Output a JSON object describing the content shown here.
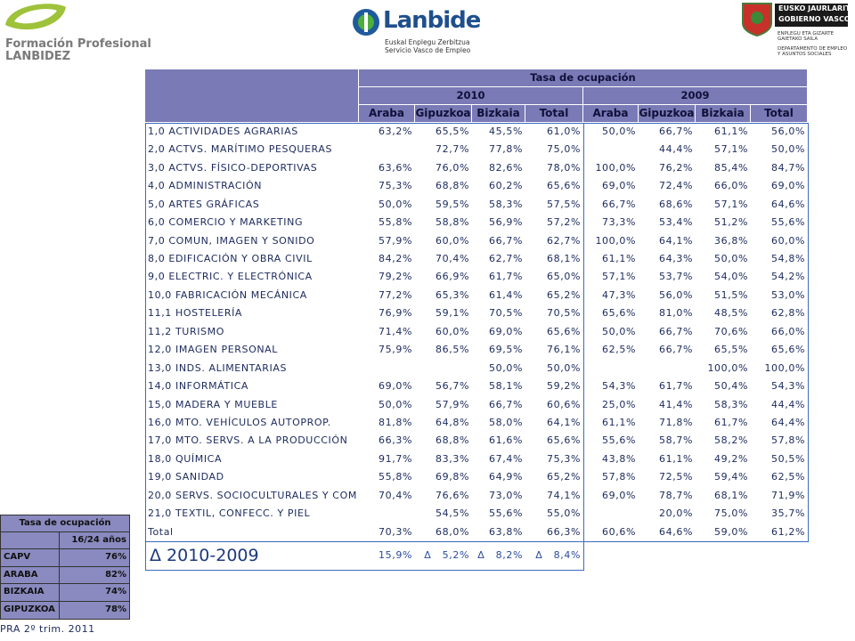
{
  "header": {
    "left_logo": [
      "Formación Profesional",
      "LANBIDEZ"
    ],
    "center_logo": {
      "name": "Lanbide",
      "lines": [
        "Euskal Enplegu Zerbitzua",
        "Servicio Vasco de Empleo"
      ]
    },
    "right_logo": {
      "title": [
        "EUSKO JAURLARITZA",
        "GOBIERNO VASCO"
      ],
      "lines": [
        "ENPLEGU ETA GIZARTE",
        "GAIETAKO SAILA",
        "DEPARTAMENTO DE EMPLEO",
        "Y ASUNTOS SOCIALES"
      ]
    }
  },
  "table": {
    "title": "Tasa de ocupación",
    "years": [
      "2010",
      "2009"
    ],
    "columns": [
      "Araba",
      "Gipuzkoa",
      "Bizkaia",
      "Total",
      "Araba",
      "Gipuzkoa",
      "Bizkaia",
      "Total"
    ],
    "rows": [
      [
        "1,0 ACTIVIDADES AGRARIAS",
        "63,2%",
        "65,5%",
        "45,5%",
        "61,0%",
        "50,0%",
        "66,7%",
        "61,1%",
        "56,0%"
      ],
      [
        "2,0 ACTVS. MARÍTIMO PESQUERAS",
        null,
        "72,7%",
        "77,8%",
        "75,0%",
        null,
        "44,4%",
        "57,1%",
        "50,0%"
      ],
      [
        "3,0 ACTVS. FÍSICO-DEPORTIVAS",
        "63,6%",
        "76,0%",
        "82,6%",
        "78,0%",
        "100,0%",
        "76,2%",
        "85,4%",
        "84,7%"
      ],
      [
        "4,0 ADMINISTRACIÓN",
        "75,3%",
        "68,8%",
        "60,2%",
        "65,6%",
        "69,0%",
        "72,4%",
        "66,0%",
        "69,0%"
      ],
      [
        "5,0 ARTES GRÁFICAS",
        "50,0%",
        "59,5%",
        "58,3%",
        "57,5%",
        "66,7%",
        "68,6%",
        "57,1%",
        "64,6%"
      ],
      [
        "6,0 COMERCIO Y MARKETING",
        "55,8%",
        "58,8%",
        "56,9%",
        "57,2%",
        "73,3%",
        "53,4%",
        "51,2%",
        "55,6%"
      ],
      [
        "7,0 COMUN, IMAGEN Y SONIDO",
        "57,9%",
        "60,0%",
        "66,7%",
        "62,7%",
        "100,0%",
        "64,1%",
        "36,8%",
        "60,0%"
      ],
      [
        "8,0 EDIFICACIÓN Y OBRA CIVIL",
        "84,2%",
        "70,4%",
        "62,7%",
        "68,1%",
        "61,1%",
        "64,3%",
        "50,0%",
        "54,8%"
      ],
      [
        "9,0 ELECTRIC. Y ELECTRÓNICA",
        "79,2%",
        "66,9%",
        "61,7%",
        "65,0%",
        "57,1%",
        "53,7%",
        "54,0%",
        "54,2%"
      ],
      [
        "10,0 FABRICACIÓN MECÁNICA",
        "77,2%",
        "65,3%",
        "61,4%",
        "65,2%",
        "47,3%",
        "56,0%",
        "51,5%",
        "53,0%"
      ],
      [
        "11,1 HOSTELERÍA",
        "76,9%",
        "59,1%",
        "70,5%",
        "70,5%",
        "65,6%",
        "81,0%",
        "48,5%",
        "62,8%"
      ],
      [
        "11,2 TURISMO",
        "71,4%",
        "60,0%",
        "69,0%",
        "65,6%",
        "50,0%",
        "66,7%",
        "70,6%",
        "66,0%"
      ],
      [
        "12,0 IMAGEN PERSONAL",
        "75,9%",
        "86,5%",
        "69,5%",
        "76,1%",
        "62,5%",
        "66,7%",
        "65,5%",
        "65,6%"
      ],
      [
        "13,0 INDS. ALIMENTARIAS",
        null,
        null,
        "50,0%",
        "50,0%",
        null,
        null,
        "100,0%",
        "100,0%"
      ],
      [
        "14,0 INFORMÁTICA",
        "69,0%",
        "56,7%",
        "58,1%",
        "59,2%",
        "54,3%",
        "61,7%",
        "50,4%",
        "54,3%"
      ],
      [
        "15,0 MADERA Y MUEBLE",
        "50,0%",
        "57,9%",
        "66,7%",
        "60,6%",
        "25,0%",
        "41,4%",
        "58,3%",
        "44,4%"
      ],
      [
        "16,0 MTO. VEHÍCULOS AUTOPROP.",
        "81,8%",
        "64,8%",
        "58,0%",
        "64,1%",
        "61,1%",
        "71,8%",
        "61,7%",
        "64,4%"
      ],
      [
        "17,0 MTO. SERVS. A LA PRODUCCIÓN",
        "66,3%",
        "68,8%",
        "61,6%",
        "65,6%",
        "55,6%",
        "58,7%",
        "58,2%",
        "57,8%"
      ],
      [
        "18,0 QUÍMICA",
        "91,7%",
        "83,3%",
        "67,4%",
        "75,3%",
        "43,8%",
        "61,1%",
        "49,2%",
        "50,5%"
      ],
      [
        "19,0 SANIDAD",
        "55,8%",
        "69,8%",
        "64,9%",
        "65,2%",
        "57,8%",
        "72,5%",
        "59,4%",
        "62,5%"
      ],
      [
        "20,0 SERVS. SOCIOCULTURALES Y COM.",
        "70,4%",
        "76,6%",
        "73,0%",
        "74,1%",
        "69,0%",
        "78,7%",
        "68,1%",
        "71,9%"
      ],
      [
        "21,0 TEXTIL, CONFECC. Y PIEL",
        null,
        "54,5%",
        "55,6%",
        "55,0%",
        null,
        "20,0%",
        "75,0%",
        "35,7%"
      ],
      [
        "Total",
        "70,3%",
        "68,0%",
        "63,8%",
        "66,3%",
        "60,6%",
        "64,6%",
        "59,0%",
        "61,2%"
      ]
    ],
    "delta": {
      "label": "Δ 2010-2009",
      "values": [
        "15,9%",
        "Δ   5,2%",
        "Δ   8,2%",
        "Δ   8,4%"
      ]
    }
  },
  "side_table": {
    "title": "Tasa de ocupación",
    "column": "16/24 años",
    "rows": [
      [
        "CAPV",
        "76%"
      ],
      [
        "ARABA",
        "82%"
      ],
      [
        "BIZKAIA",
        "74%"
      ],
      [
        "GIPUZKOA",
        "78%"
      ]
    ]
  },
  "footer": "PRA 2º trim. 2011"
}
